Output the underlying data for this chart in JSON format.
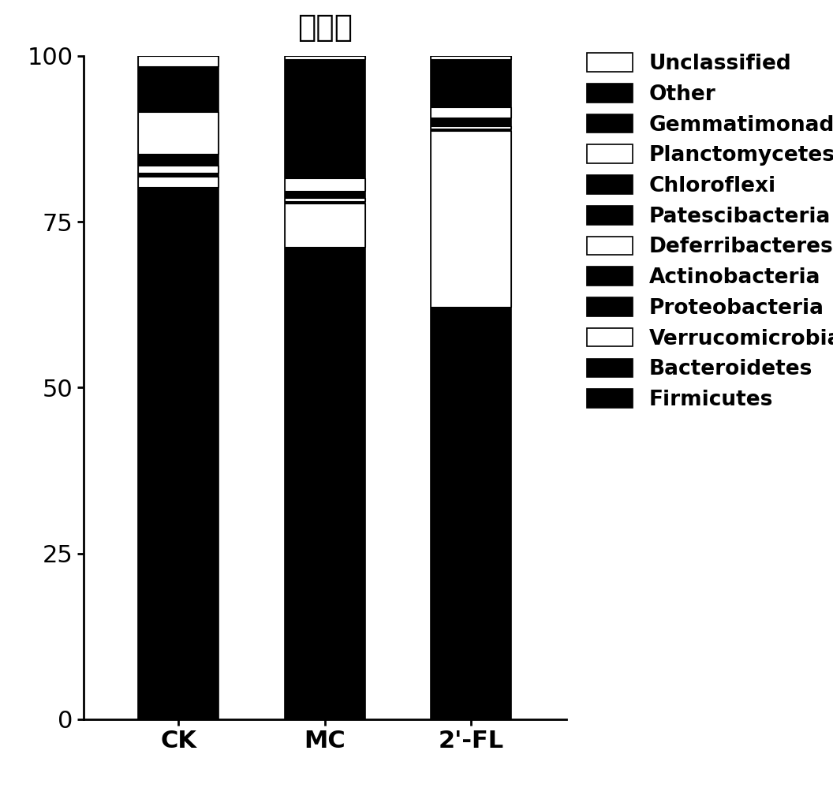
{
  "categories": [
    "CK",
    "MC",
    "2'-FL"
  ],
  "title": "门水平",
  "ylim": [
    0,
    100
  ],
  "yticks": [
    0,
    25,
    50,
    75,
    100
  ],
  "legend_labels": [
    "Unclassified",
    "Other",
    "Gemmatimonadetes",
    "Planctomycetes",
    "Chloroflexi",
    "Patescibacteria",
    "Deferribacteres",
    "Actinobacteria",
    "Proteobacteria",
    "Verrucomicrobia",
    "Bacteroidetes",
    "Firmicutes"
  ],
  "legend_colors": [
    "#ffffff",
    "#000000",
    "#000000",
    "#ffffff",
    "#000000",
    "#000000",
    "#ffffff",
    "#000000",
    "#000000",
    "#ffffff",
    "#000000",
    "#000000"
  ],
  "stack_order": [
    "Firmicutes",
    "Bacteroidetes",
    "Verrucomicrobia",
    "Proteobacteria",
    "Actinobacteria",
    "Deferribacteres",
    "Patescibacteria",
    "Chloroflexi",
    "Planctomycetes",
    "Gemmatimonadetes",
    "Other",
    "Unclassified"
  ],
  "stack_data": {
    "Firmicutes": [
      80.0,
      71.0,
      62.0
    ],
    "Bacteroidetes": [
      0.3,
      0.2,
      0.2
    ],
    "Verrucomicrobia": [
      1.5,
      6.5,
      26.5
    ],
    "Proteobacteria": [
      0.3,
      0.2,
      0.2
    ],
    "Actinobacteria": [
      0.3,
      0.2,
      0.2
    ],
    "Deferribacteres": [
      1.0,
      0.5,
      0.3
    ],
    "Patescibacteria": [
      1.5,
      0.8,
      1.0
    ],
    "Chloroflexi": [
      0.3,
      0.3,
      0.3
    ],
    "Planctomycetes": [
      6.3,
      1.8,
      1.5
    ],
    "Gemmatimonadetes": [
      1.5,
      1.0,
      1.0
    ],
    "Other": [
      5.5,
      17.0,
      6.3
    ],
    "Unclassified": [
      1.5,
      0.5,
      0.5
    ]
  },
  "stack_colors": {
    "Firmicutes": "#000000",
    "Bacteroidetes": "#000000",
    "Verrucomicrobia": "#ffffff",
    "Proteobacteria": "#000000",
    "Actinobacteria": "#000000",
    "Deferribacteres": "#ffffff",
    "Patescibacteria": "#000000",
    "Chloroflexi": "#000000",
    "Planctomycetes": "#ffffff",
    "Gemmatimonadetes": "#000000",
    "Other": "#000000",
    "Unclassified": "#ffffff"
  },
  "bar_width": 0.55,
  "background_color": "#ffffff",
  "title_fontsize": 28,
  "tick_fontsize": 22,
  "legend_fontsize": 19
}
